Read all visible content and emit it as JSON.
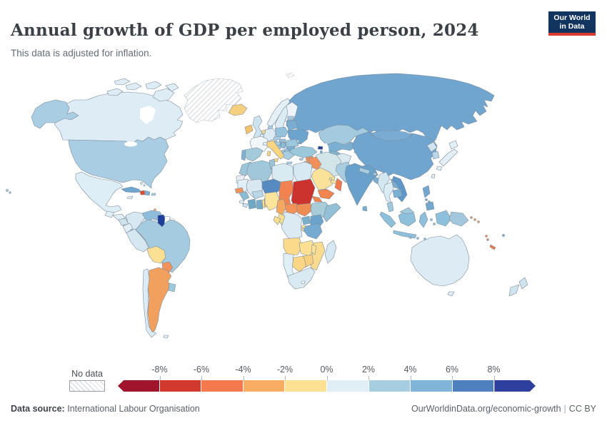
{
  "header": {
    "title": "Annual growth of GDP per employed person, 2024",
    "subtitle": "This data is adjusted for inflation."
  },
  "logo": {
    "line1": "Our World",
    "line2": "in Data",
    "bg": "#12355f",
    "accent": "#d93a32"
  },
  "legend": {
    "no_data_label": "No data",
    "ticks": [
      "-8%",
      "-6%",
      "-4%",
      "-2%",
      "0%",
      "2%",
      "4%",
      "6%",
      "8%"
    ]
  },
  "footer": {
    "source_label": "Data source:",
    "source_value": "International Labour Organisation",
    "link": "OurWorldinData.org/economic-growth",
    "license": "CC BY"
  },
  "chart_data": {
    "type": "heatmap",
    "subtype": "choropleth-world-map",
    "title": "Annual growth of GDP per employed person, 2024",
    "unit": "%",
    "legend_position": "bottom",
    "legend_buckets": [
      {
        "label": "< -8%",
        "color": "#a1152c"
      },
      {
        "label": "-8% to -6%",
        "color": "#d2392d"
      },
      {
        "label": "-6% to -4%",
        "color": "#f4794e"
      },
      {
        "label": "-4% to -2%",
        "color": "#f8ad62"
      },
      {
        "label": "-2% to 0%",
        "color": "#fbe191"
      },
      {
        "label": "0% to 2%",
        "color": "#e0eef5"
      },
      {
        "label": "2% to 4%",
        "color": "#a7cde1"
      },
      {
        "label": "4% to 6%",
        "color": "#80b4d8"
      },
      {
        "label": "6% to 8%",
        "color": "#4d80bc"
      },
      {
        "label": "> 8%",
        "color": "#2f3f9d"
      }
    ],
    "countries": [
      {
        "id": "greenland",
        "name": "Greenland",
        "bucket": "no-data"
      },
      {
        "id": "svalbard",
        "name": "Svalbard",
        "bucket": "no-data"
      },
      {
        "id": "canada",
        "name": "Canada",
        "bucket": 5,
        "color": "#ddecf5"
      },
      {
        "id": "usa",
        "name": "United States",
        "bucket": 6,
        "color": "#a9cee3"
      },
      {
        "id": "mexico",
        "name": "Mexico",
        "bucket": 5,
        "color": "#ddeef6"
      },
      {
        "id": "guatemala",
        "name": "Guatemala",
        "bucket": 5
      },
      {
        "id": "honduras",
        "name": "Honduras",
        "bucket": 5
      },
      {
        "id": "nicaragua",
        "name": "Nicaragua",
        "bucket": 5,
        "color": "#cfe3ef"
      },
      {
        "id": "costa-rica",
        "name": "Costa Rica",
        "bucket": 6
      },
      {
        "id": "panama",
        "name": "Panama",
        "bucket": 6
      },
      {
        "id": "cuba",
        "name": "Cuba",
        "bucket": 7,
        "color": "#6ea6d0"
      },
      {
        "id": "jamaica",
        "name": "Jamaica",
        "bucket": 5
      },
      {
        "id": "haiti",
        "name": "Haiti",
        "bucket": 1,
        "color": "#e04b2f"
      },
      {
        "id": "dominican-republic",
        "name": "Dominican Republic",
        "bucket": 6,
        "color": "#7cb0d4"
      },
      {
        "id": "puerto-rico",
        "name": "Puerto Rico",
        "bucket": 6
      },
      {
        "id": "bahamas",
        "name": "Bahamas",
        "bucket": 5
      },
      {
        "id": "trinidad",
        "name": "Trinidad and Tobago",
        "bucket": 3
      },
      {
        "id": "iceland",
        "name": "Iceland",
        "bucket": 4,
        "color": "#f6d07e"
      },
      {
        "id": "colombia",
        "name": "Colombia",
        "bucket": 5,
        "color": "#d7e8f2"
      },
      {
        "id": "venezuela",
        "name": "Venezuela",
        "bucket": 6,
        "color": "#8fbcda"
      },
      {
        "id": "guyana",
        "name": "Guyana",
        "bucket": 9,
        "color": "#1e3d9a"
      },
      {
        "id": "suriname",
        "name": "Suriname",
        "bucket": "no-data",
        "color": "#ffffff"
      },
      {
        "id": "french-guiana",
        "name": "French Guiana",
        "bucket": "no-data"
      },
      {
        "id": "ecuador",
        "name": "Ecuador",
        "bucket": 5
      },
      {
        "id": "peru",
        "name": "Peru",
        "bucket": 5,
        "color": "#d5e7f1"
      },
      {
        "id": "brazil",
        "name": "Brazil",
        "bucket": 6,
        "color": "#a5cbe0"
      },
      {
        "id": "bolivia",
        "name": "Bolivia",
        "bucket": 4,
        "color": "#fbdf93"
      },
      {
        "id": "paraguay",
        "name": "Paraguay",
        "bucket": 2,
        "color": "#f0925a"
      },
      {
        "id": "chile",
        "name": "Chile",
        "bucket": 5,
        "color": "#ddecf4"
      },
      {
        "id": "argentina",
        "name": "Argentina",
        "bucket": 3,
        "color": "#f2a05e"
      },
      {
        "id": "uruguay",
        "name": "Uruguay",
        "bucket": 6,
        "color": "#9cc8de"
      },
      {
        "id": "falkland",
        "name": "Falkland Islands",
        "bucket": 5
      },
      {
        "id": "ireland",
        "name": "Ireland",
        "bucket": 3,
        "color": "#f2c36f"
      },
      {
        "id": "uk",
        "name": "United Kingdom",
        "bucket": 5,
        "color": "#cfe3ef"
      },
      {
        "id": "norway",
        "name": "Norway",
        "bucket": 5,
        "color": "#e4eff6"
      },
      {
        "id": "sweden",
        "name": "Sweden",
        "bucket": 5,
        "color": "#dcebf4"
      },
      {
        "id": "finland",
        "name": "Finland",
        "bucket": 5,
        "color": "#eef4f9"
      },
      {
        "id": "denmark",
        "name": "Denmark",
        "bucket": 6
      },
      {
        "id": "estonia",
        "name": "Estonia",
        "bucket": 6
      },
      {
        "id": "latvia",
        "name": "Latvia",
        "bucket": 7,
        "color": "#79aed3"
      },
      {
        "id": "lithuania",
        "name": "Lithuania",
        "bucket": 7,
        "color": "#79aed3"
      },
      {
        "id": "france",
        "name": "France",
        "bucket": 5,
        "color": "#f1f6f9"
      },
      {
        "id": "spain",
        "name": "Spain",
        "bucket": 6,
        "color": "#a3cbda"
      },
      {
        "id": "portugal",
        "name": "Portugal",
        "bucket": 7,
        "color": "#7db2d0"
      },
      {
        "id": "germany",
        "name": "Germany",
        "bucket": 5,
        "color": "#dcebf3"
      },
      {
        "id": "netherlands",
        "name": "Netherlands",
        "bucket": 4,
        "color": "#f8d88a"
      },
      {
        "id": "belgium",
        "name": "Belgium",
        "bucket": 5
      },
      {
        "id": "switzerland",
        "name": "Switzerland",
        "bucket": 5
      },
      {
        "id": "austria",
        "name": "Austria",
        "bucket": 6
      },
      {
        "id": "czechia",
        "name": "Czechia",
        "bucket": 6
      },
      {
        "id": "slovakia",
        "name": "Slovakia",
        "bucket": 6,
        "color": "#94c2dc"
      },
      {
        "id": "hungary",
        "name": "Hungary",
        "bucket": 7,
        "color": "#80b4cc"
      },
      {
        "id": "poland",
        "name": "Poland",
        "bucket": 6,
        "color": "#94c2dc"
      },
      {
        "id": "belarus",
        "name": "Belarus",
        "bucket": 7,
        "color": "#7aadd2"
      },
      {
        "id": "ukraine",
        "name": "Ukraine",
        "bucket": 7,
        "color": "#6da4ce"
      },
      {
        "id": "moldova",
        "name": "Moldova",
        "bucket": 6
      },
      {
        "id": "romania",
        "name": "Romania",
        "bucket": 6,
        "color": "#9cc8de"
      },
      {
        "id": "bulgaria",
        "name": "Bulgaria",
        "bucket": 7,
        "color": "#7ab0d2"
      },
      {
        "id": "serbia",
        "name": "Serbia",
        "bucket": 6,
        "color": "#8fbcd8"
      },
      {
        "id": "croatia",
        "name": "Croatia",
        "bucket": 6
      },
      {
        "id": "bosnia",
        "name": "Bosnia and Herzegovina",
        "bucket": 6,
        "color": "#9cc8de"
      },
      {
        "id": "albania",
        "name": "Albania",
        "bucket": 6
      },
      {
        "id": "north-macedonia",
        "name": "North Macedonia",
        "bucket": 6,
        "color": "#9cc8de"
      },
      {
        "id": "greece",
        "name": "Greece",
        "bucket": 6,
        "color": "#a9cee2"
      },
      {
        "id": "italy",
        "name": "Italy",
        "bucket": 4,
        "color": "#f8d580"
      },
      {
        "id": "russia",
        "name": "Russia",
        "bucket": 7,
        "color": "#6fa5cf"
      },
      {
        "id": "georgia",
        "name": "Georgia",
        "bucket": 9,
        "color": "#2f3f9d"
      },
      {
        "id": "armenia",
        "name": "Armenia",
        "bucket": 7,
        "color": "#79aed3"
      },
      {
        "id": "azerbaijan",
        "name": "Azerbaijan",
        "bucket": 7,
        "color": "#79aed3"
      },
      {
        "id": "turkey",
        "name": "Turkey",
        "bucket": 6,
        "color": "#9cc8dc"
      },
      {
        "id": "cyprus",
        "name": "Cyprus",
        "bucket": 6
      },
      {
        "id": "syria",
        "name": "Syria",
        "bucket": 2,
        "color": "#f2935c"
      },
      {
        "id": "lebanon",
        "name": "Lebanon",
        "bucket": 3
      },
      {
        "id": "israel",
        "name": "Israel",
        "bucket": 2,
        "color": "#f2935c"
      },
      {
        "id": "jordan",
        "name": "Jordan",
        "bucket": 3,
        "color": "#f4a25f"
      },
      {
        "id": "iraq",
        "name": "Iraq",
        "bucket": 2,
        "color": "#f19159"
      },
      {
        "id": "kuwait",
        "name": "Kuwait",
        "bucket": 2
      },
      {
        "id": "saudi-arabia",
        "name": "Saudi Arabia",
        "bucket": 4,
        "color": "#fbe29a"
      },
      {
        "id": "qatar",
        "name": "Qatar",
        "bucket": 4
      },
      {
        "id": "uae",
        "name": "United Arab Emirates",
        "bucket": 4,
        "color": "#fbe29a"
      },
      {
        "id": "oman",
        "name": "Oman",
        "bucket": 2,
        "color": "#f0794a"
      },
      {
        "id": "yemen",
        "name": "Yemen",
        "bucket": 2,
        "color": "#f2854f"
      },
      {
        "id": "iran",
        "name": "Iran",
        "bucket": 5,
        "color": "#d2e6ea"
      },
      {
        "id": "afghanistan",
        "name": "Afghanistan",
        "bucket": 5,
        "color": "#d9e9ef"
      },
      {
        "id": "pakistan",
        "name": "Pakistan",
        "bucket": 6,
        "color": "#a8cde0"
      },
      {
        "id": "kazakhstan",
        "name": "Kazakhstan",
        "bucket": 6,
        "color": "#a3cade"
      },
      {
        "id": "uzbekistan",
        "name": "Uzbekistan",
        "bucket": 7,
        "color": "#7cb0d2"
      },
      {
        "id": "turkmenistan",
        "name": "Turkmenistan",
        "bucket": 7,
        "color": "#83b4cf"
      },
      {
        "id": "kyrgyzstan",
        "name": "Kyrgyzstan",
        "bucket": 6
      },
      {
        "id": "tajikistan",
        "name": "Tajikistan",
        "bucket": 6,
        "color": "#9cc8dc"
      },
      {
        "id": "china",
        "name": "China",
        "bucket": 7,
        "color": "#70a5cf"
      },
      {
        "id": "mongolia",
        "name": "Mongolia",
        "bucket": 7,
        "color": "#7aabd3"
      },
      {
        "id": "india",
        "name": "India",
        "bucket": 7,
        "color": "#68a1cc"
      },
      {
        "id": "nepal",
        "name": "Nepal",
        "bucket": 6
      },
      {
        "id": "bhutan",
        "name": "Bhutan",
        "bucket": 6
      },
      {
        "id": "bangladesh",
        "name": "Bangladesh",
        "bucket": 7,
        "color": "#79aed3"
      },
      {
        "id": "sri-lanka",
        "name": "Sri Lanka",
        "bucket": 7,
        "color": "#79aed3"
      },
      {
        "id": "myanmar",
        "name": "Myanmar",
        "bucket": 5,
        "color": "#d3e7f0"
      },
      {
        "id": "thailand",
        "name": "Thailand",
        "bucket": 5,
        "color": "#dcecf3"
      },
      {
        "id": "laos",
        "name": "Laos",
        "bucket": 7,
        "color": "#78aed2"
      },
      {
        "id": "cambodia",
        "name": "Cambodia",
        "bucket": 7,
        "color": "#7ab0d4"
      },
      {
        "id": "vietnam",
        "name": "Vietnam",
        "bucket": 7,
        "color": "#5e97c8"
      },
      {
        "id": "malaysia",
        "name": "Malaysia",
        "bucket": 6,
        "color": "#a0c9de"
      },
      {
        "id": "indonesia",
        "name": "Indonesia",
        "bucket": 6,
        "color": "#8fc0db"
      },
      {
        "id": "philippines",
        "name": "Philippines",
        "bucket": 7,
        "color": "#72a7d0"
      },
      {
        "id": "png",
        "name": "Papua New Guinea",
        "bucket": 6,
        "color": "#a3c8de"
      },
      {
        "id": "north-korea",
        "name": "North Korea",
        "bucket": 5,
        "color": "#d2e5ef"
      },
      {
        "id": "south-korea",
        "name": "South Korea",
        "bucket": 6,
        "color": "#b9d6e8"
      },
      {
        "id": "japan",
        "name": "Japan",
        "bucket": 5,
        "color": "#e3eff6"
      },
      {
        "id": "taiwan",
        "name": "Taiwan",
        "bucket": 5
      },
      {
        "id": "morocco",
        "name": "Morocco",
        "bucket": 6,
        "color": "#9cc6d8"
      },
      {
        "id": "western-sahara",
        "name": "Western Sahara",
        "bucket": 5,
        "color": "#e7eef2"
      },
      {
        "id": "algeria",
        "name": "Algeria",
        "bucket": 6,
        "color": "#a0c8da"
      },
      {
        "id": "tunisia",
        "name": "Tunisia",
        "bucket": 6,
        "color": "#9cc6d8"
      },
      {
        "id": "libya",
        "name": "Libya",
        "bucket": 5,
        "color": "#d8eaf2"
      },
      {
        "id": "egypt",
        "name": "Egypt",
        "bucket": 5,
        "color": "#d7e9f2"
      },
      {
        "id": "mauritania",
        "name": "Mauritania",
        "bucket": 5
      },
      {
        "id": "mali",
        "name": "Mali",
        "bucket": 5,
        "color": "#d9e8f0"
      },
      {
        "id": "senegal",
        "name": "Senegal",
        "bucket": 2,
        "color": "#f2935c"
      },
      {
        "id": "guinea",
        "name": "Guinea",
        "bucket": 6,
        "color": "#8cbcd4"
      },
      {
        "id": "sierra-leone",
        "name": "Sierra Leone",
        "bucket": 5
      },
      {
        "id": "liberia",
        "name": "Liberia",
        "bucket": 5,
        "color": "#cfe3ef"
      },
      {
        "id": "cote-divoire",
        "name": "Cote d'Ivoire",
        "bucket": 7,
        "color": "#6fa8c4"
      },
      {
        "id": "ghana",
        "name": "Ghana",
        "bucket": 7,
        "color": "#74abc8"
      },
      {
        "id": "togo",
        "name": "Togo",
        "bucket": 4,
        "color": "#fbe092"
      },
      {
        "id": "benin",
        "name": "Benin",
        "bucket": 3,
        "color": "#f7c475"
      },
      {
        "id": "burkina-faso",
        "name": "Burkina Faso",
        "bucket": 6,
        "color": "#b8d6e6"
      },
      {
        "id": "niger",
        "name": "Niger",
        "bucket": 8,
        "color": "#568ac1"
      },
      {
        "id": "nigeria",
        "name": "Nigeria",
        "bucket": 4,
        "color": "#fce49c"
      },
      {
        "id": "chad",
        "name": "Chad",
        "bucket": 2,
        "color": "#f28350"
      },
      {
        "id": "sudan",
        "name": "Sudan",
        "bucket": 1,
        "color": "#cc332e"
      },
      {
        "id": "eritrea",
        "name": "Eritrea",
        "bucket": 2,
        "color": "#f2854f"
      },
      {
        "id": "djibouti",
        "name": "Djibouti",
        "bucket": 6
      },
      {
        "id": "ethiopia",
        "name": "Ethiopia",
        "bucket": 6,
        "color": "#a8ccd8"
      },
      {
        "id": "somalia",
        "name": "Somalia",
        "bucket": 6,
        "color": "#93c0d6"
      },
      {
        "id": "cameroon",
        "name": "Cameroon",
        "bucket": 3,
        "color": "#f5a862"
      },
      {
        "id": "car",
        "name": "Central African Republic",
        "bucket": 2,
        "color": "#f29158"
      },
      {
        "id": "south-sudan",
        "name": "South Sudan",
        "bucket": 2,
        "color": "#ef8c54"
      },
      {
        "id": "drc",
        "name": "Democratic Republic of Congo",
        "bucket": 5,
        "color": "#dcebf3"
      },
      {
        "id": "congo",
        "name": "Congo",
        "bucket": 4,
        "color": "#fbdf90"
      },
      {
        "id": "gabon",
        "name": "Gabon",
        "bucket": 4,
        "color": "#fbdd8e"
      },
      {
        "id": "uganda",
        "name": "Uganda",
        "bucket": 7,
        "color": "#79aecd"
      },
      {
        "id": "kenya",
        "name": "Kenya",
        "bucket": 7,
        "color": "#6aa3cc"
      },
      {
        "id": "rwanda",
        "name": "Rwanda",
        "bucket": 4
      },
      {
        "id": "burundi",
        "name": "Burundi",
        "bucket": 4
      },
      {
        "id": "tanzania",
        "name": "Tanzania",
        "bucket": 7,
        "color": "#77aad0"
      },
      {
        "id": "angola",
        "name": "Angola",
        "bucket": 4,
        "color": "#fbda8c"
      },
      {
        "id": "zambia",
        "name": "Zambia",
        "bucket": 4,
        "color": "#fbdf92"
      },
      {
        "id": "malawi",
        "name": "Malawi",
        "bucket": 4
      },
      {
        "id": "mozambique",
        "name": "Mozambique",
        "bucket": 4,
        "color": "#fadc90"
      },
      {
        "id": "zimbabwe",
        "name": "Zimbabwe",
        "bucket": 4,
        "color": "#f9d07f"
      },
      {
        "id": "botswana",
        "name": "Botswana",
        "bucket": 4,
        "color": "#fbd687"
      },
      {
        "id": "namibia",
        "name": "Namibia",
        "bucket": 5,
        "color": "#e0eef5"
      },
      {
        "id": "south-africa",
        "name": "South Africa",
        "bucket": 5,
        "color": "#d9eaf2"
      },
      {
        "id": "lesotho",
        "name": "Lesotho",
        "bucket": "no-data",
        "color": "#ffffff"
      },
      {
        "id": "madagascar",
        "name": "Madagascar",
        "bucket": 5,
        "color": "#d6e8f1"
      },
      {
        "id": "australia",
        "name": "Australia",
        "bucket": 5,
        "color": "#ddecf4"
      },
      {
        "id": "new-zealand",
        "name": "New Zealand",
        "bucket": 6,
        "color": "#cfe4ef"
      },
      {
        "id": "fiji",
        "name": "Fiji",
        "bucket": 7
      },
      {
        "id": "new-caledonia",
        "name": "New Caledonia",
        "bucket": 2,
        "color": "#f0794a"
      },
      {
        "id": "vanuatu",
        "name": "Vanuatu",
        "bucket": 2,
        "color": "#f2854f"
      },
      {
        "id": "solomon-islands",
        "name": "Solomon Islands",
        "bucket": 3,
        "color": "#d9a05f"
      }
    ]
  }
}
